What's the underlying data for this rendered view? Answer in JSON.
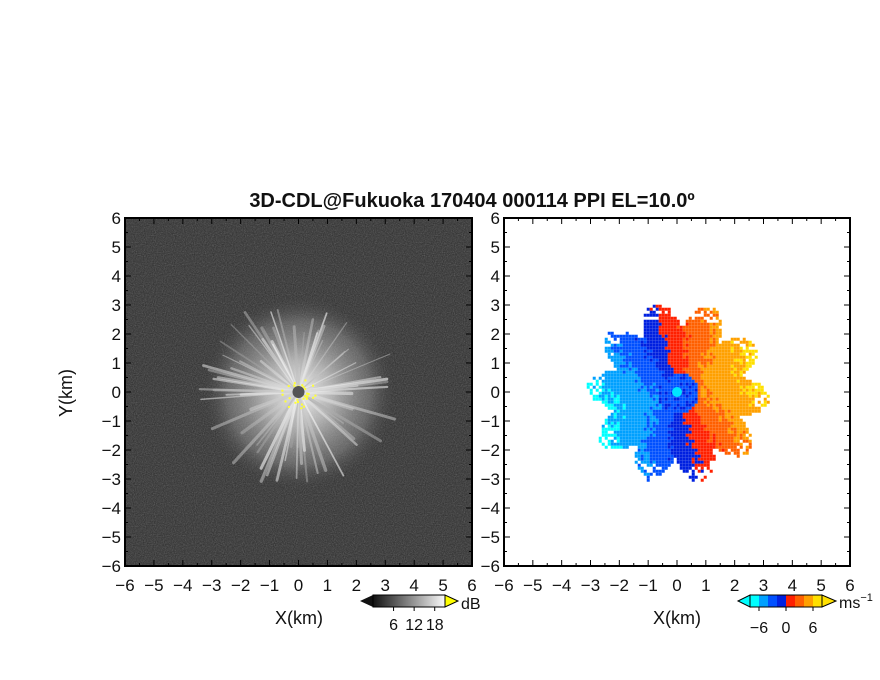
{
  "chart_data": {
    "title": "3D-CDL@Fukuoka 170404 000114 PPI EL=10.0º",
    "panels": [
      {
        "type": "heatmap",
        "quantity": "SNR",
        "xlabel": "X(km)",
        "ylabel": "Y(km)",
        "xlim": [
          -6,
          6
        ],
        "ylim": [
          -6,
          6
        ],
        "xticks": [
          "−6",
          "−5",
          "−4",
          "−3",
          "−2",
          "−1",
          "0",
          "1",
          "2",
          "3",
          "4",
          "5",
          "6"
        ],
        "yticks": [
          "6",
          "5",
          "4",
          "3",
          "2",
          "1",
          "0",
          "−1",
          "−2",
          "−3",
          "−4",
          "−5",
          "−6"
        ],
        "echo_radius_km": 3.3,
        "colorbar": {
          "colormap": "grayscale",
          "ticks": [
            "6",
            "12",
            "18"
          ],
          "tick_values": [
            6,
            12,
            18
          ],
          "range": [
            0,
            21
          ],
          "unit": "dB",
          "over_color": "#ffff00"
        }
      },
      {
        "type": "heatmap",
        "quantity": "Doppler velocity",
        "xlabel": "X(km)",
        "ylabel": "",
        "xlim": [
          -6,
          6
        ],
        "ylim": [
          -6,
          6
        ],
        "xticks": [
          "−6",
          "−5",
          "−4",
          "−3",
          "−2",
          "−1",
          "0",
          "1",
          "2",
          "3",
          "4",
          "5",
          "6"
        ],
        "yticks": [
          "6",
          "5",
          "4",
          "3",
          "2",
          "1",
          "0",
          "−1",
          "−2",
          "−3",
          "−4",
          "−5",
          "−6"
        ],
        "echo_radius_km": 3.2,
        "colorbar": {
          "colormap": "cyan-blue-red-orange-yellow",
          "ticks": [
            "−6",
            "0",
            "6"
          ],
          "tick_values": [
            -6,
            0,
            6
          ],
          "range": [
            -8,
            8
          ],
          "unit": "ms",
          "unit_exponent": "−1",
          "colors": [
            "#00ffff",
            "#00a0ff",
            "#0050ff",
            "#0020e0",
            "#ff2000",
            "#ff6000",
            "#ffa000",
            "#ffe000"
          ]
        }
      }
    ]
  }
}
